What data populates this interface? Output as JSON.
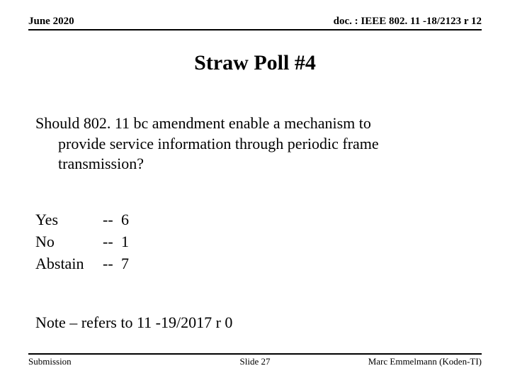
{
  "header": {
    "date": "June 2020",
    "docref": "doc. : IEEE 802. 11 -18/2123 r 12"
  },
  "title": "Straw Poll #4",
  "question": {
    "line1": "Should 802. 11 bc amendment enable a mechanism to",
    "line2": "provide service information through periodic frame",
    "line3": "transmission?"
  },
  "results": [
    {
      "label": "Yes",
      "sep": "--",
      "count": "6"
    },
    {
      "label": "No",
      "sep": "--",
      "count": "1"
    },
    {
      "label": "Abstain",
      "sep": "--",
      "count": "7"
    }
  ],
  "note": "Note – refers to 11 -19/2017 r 0",
  "footer": {
    "left": "Submission",
    "center": "Slide 27",
    "right": "Marc Emmelmann (Koden-TI)"
  },
  "colors": {
    "background": "#ffffff",
    "text": "#000000",
    "rule": "#000000"
  },
  "typography": {
    "family": "Times New Roman",
    "header_fontsize_pt": 11,
    "title_fontsize_pt": 22,
    "body_fontsize_pt": 16,
    "footer_fontsize_pt": 10
  }
}
